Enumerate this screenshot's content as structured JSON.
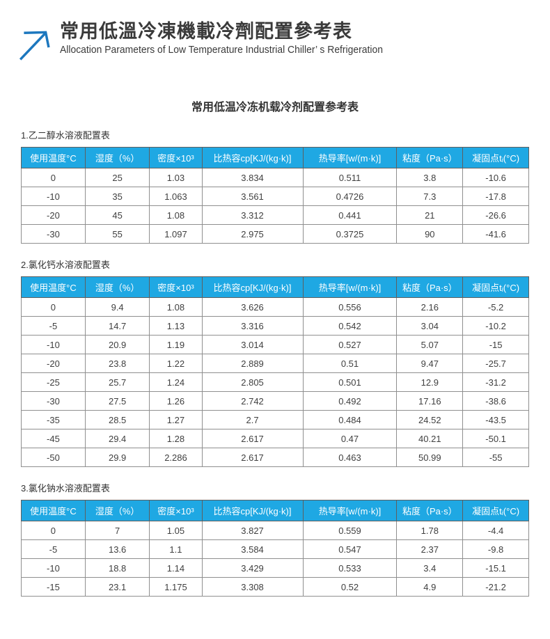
{
  "header": {
    "title": "常用低溫冷凍機載冷劑配置參考表",
    "subtitle": "Allocation Parameters of Low Temperature Industrial Chiller’ s Refrigeration"
  },
  "document_title": "常用低温冷冻机载冷剂配置参考表",
  "columns": [
    "使用温度°C",
    "湿度（%）",
    "密度×10³",
    "比热容cp[KJ/(kg·k)]",
    "热导率[w/(m·k)]",
    "粘度（Pa·s）",
    "凝固点tᵢ(°C)"
  ],
  "tables": [
    {
      "label": "1.乙二醇水溶液配置表",
      "rows": [
        [
          "0",
          "25",
          "1.03",
          "3.834",
          "0.511",
          "3.8",
          "-10.6"
        ],
        [
          "-10",
          "35",
          "1.063",
          "3.561",
          "0.4726",
          "7.3",
          "-17.8"
        ],
        [
          "-20",
          "45",
          "1.08",
          "3.312",
          "0.441",
          "21",
          "-26.6"
        ],
        [
          "-30",
          "55",
          "1.097",
          "2.975",
          "0.3725",
          "90",
          "-41.6"
        ]
      ]
    },
    {
      "label": "2.氯化钙水溶液配置表",
      "rows": [
        [
          "0",
          "9.4",
          "1.08",
          "3.626",
          "0.556",
          "2.16",
          "-5.2"
        ],
        [
          "-5",
          "14.7",
          "1.13",
          "3.316",
          "0.542",
          "3.04",
          "-10.2"
        ],
        [
          "-10",
          "20.9",
          "1.19",
          "3.014",
          "0.527",
          "5.07",
          "-15"
        ],
        [
          "-20",
          "23.8",
          "1.22",
          "2.889",
          "0.51",
          "9.47",
          "-25.7"
        ],
        [
          "-25",
          "25.7",
          "1.24",
          "2.805",
          "0.501",
          "12.9",
          "-31.2"
        ],
        [
          "-30",
          "27.5",
          "1.26",
          "2.742",
          "0.492",
          "17.16",
          "-38.6"
        ],
        [
          "-35",
          "28.5",
          "1.27",
          "2.7",
          "0.484",
          "24.52",
          "-43.5"
        ],
        [
          "-45",
          "29.4",
          "1.28",
          "2.617",
          "0.47",
          "40.21",
          "-50.1"
        ],
        [
          "-50",
          "29.9",
          "2.286",
          "2.617",
          "0.463",
          "50.99",
          "-55"
        ]
      ]
    },
    {
      "label": "3.氯化钠水溶液配置表",
      "rows": [
        [
          "0",
          "7",
          "1.05",
          "3.827",
          "0.559",
          "1.78",
          "-4.4"
        ],
        [
          "-5",
          "13.6",
          "1.1",
          "3.584",
          "0.547",
          "2.37",
          "-9.8"
        ],
        [
          "-10",
          "18.8",
          "1.14",
          "3.429",
          "0.533",
          "3.4",
          "-15.1"
        ],
        [
          "-15",
          "23.1",
          "1.175",
          "3.308",
          "0.52",
          "4.9",
          "-21.2"
        ]
      ]
    }
  ],
  "colors": {
    "accent": "#1FA8E3",
    "logo_blue": "#1C77BE",
    "header_text": "#FFFFFF",
    "body_text": "#3F3F3F",
    "border": "#8F8F8F"
  }
}
